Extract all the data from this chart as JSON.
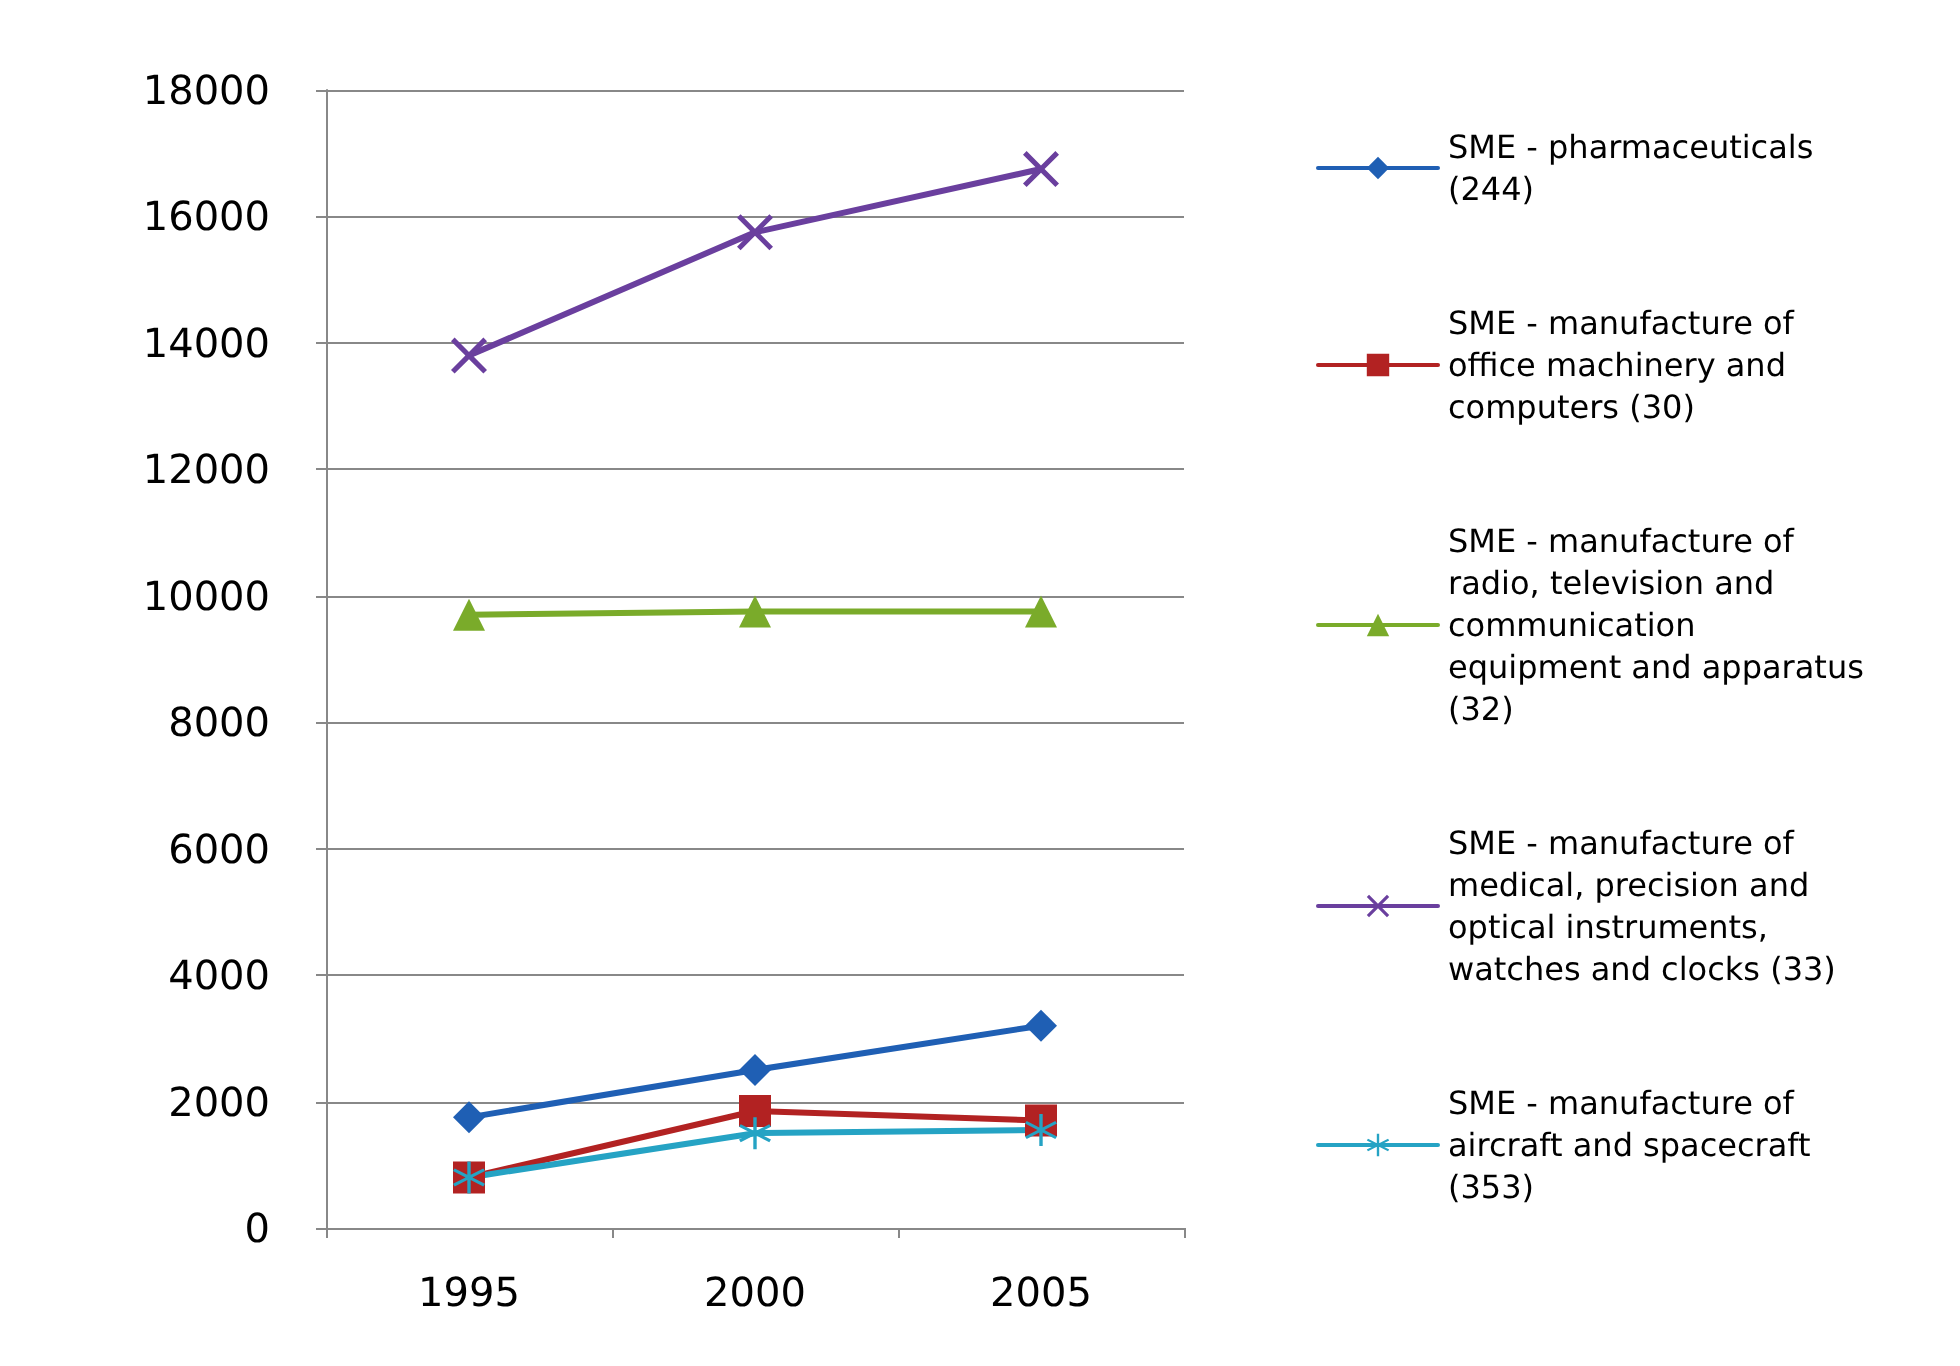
{
  "chart_data": {
    "type": "line",
    "categories": [
      "1995",
      "2000",
      "2005"
    ],
    "ylim": [
      0,
      18000
    ],
    "yticks": [
      0,
      2000,
      4000,
      6000,
      8000,
      10000,
      12000,
      14000,
      16000,
      18000
    ],
    "grid": "y",
    "legend": "right",
    "line_style": "solid",
    "series": [
      {
        "name": "SME - pharmaceuticals (244)",
        "color": "#1f5fb4",
        "marker": "diamond",
        "values": [
          1750,
          2500,
          3200
        ]
      },
      {
        "name": "SME - manufacture of office machinery and computers (30)",
        "color": "#b22222",
        "marker": "square",
        "values": [
          800,
          1850,
          1700
        ]
      },
      {
        "name": "SME - manufacture of radio, television and communication equipment and apparatus (32)",
        "color": "#7aab2a",
        "marker": "triangle",
        "values": [
          9700,
          9750,
          9750
        ]
      },
      {
        "name": "SME - manufacture of medical, precision and optical instruments, watches and clocks (33)",
        "color": "#6a3f9e",
        "marker": "cross",
        "values": [
          13800,
          15750,
          16750
        ]
      },
      {
        "name": "SME - manufacture of aircraft and spacecraft (353)",
        "color": "#25a3c4",
        "marker": "star",
        "values": [
          800,
          1500,
          1550
        ]
      }
    ]
  }
}
